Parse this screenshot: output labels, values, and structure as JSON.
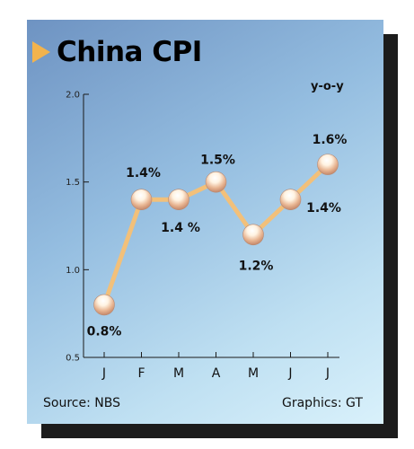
{
  "header": {
    "title": "China CPI",
    "unit": "y-o-y"
  },
  "footer": {
    "source": "Source: NBS",
    "credit": "Graphics: GT"
  },
  "colors": {
    "line": "#f2c07a",
    "marker_top": "#fff6e6",
    "marker_bottom": "#d9a37a",
    "axis": "#1a1a1a",
    "accent_arrow": "#f2b34d"
  },
  "chart_data": {
    "type": "line",
    "title": "China CPI",
    "xlabel": "",
    "ylabel": "y-o-y",
    "categories": [
      "J",
      "F",
      "M",
      "A",
      "M",
      "J",
      "J"
    ],
    "series": [
      {
        "values": [
          0.8,
          1.4,
          1.4,
          1.5,
          1.2,
          1.4,
          1.6
        ],
        "labels": [
          "0.8%",
          "1.4%",
          "1.4 %",
          "1.5%",
          "1.2%",
          "1.4%",
          "1.6%"
        ]
      }
    ],
    "ylim": [
      0.5,
      2.0
    ],
    "yticks": [
      "0.5",
      "1.0",
      "1.5",
      "2.0"
    ],
    "grid": false,
    "legend": "none"
  }
}
